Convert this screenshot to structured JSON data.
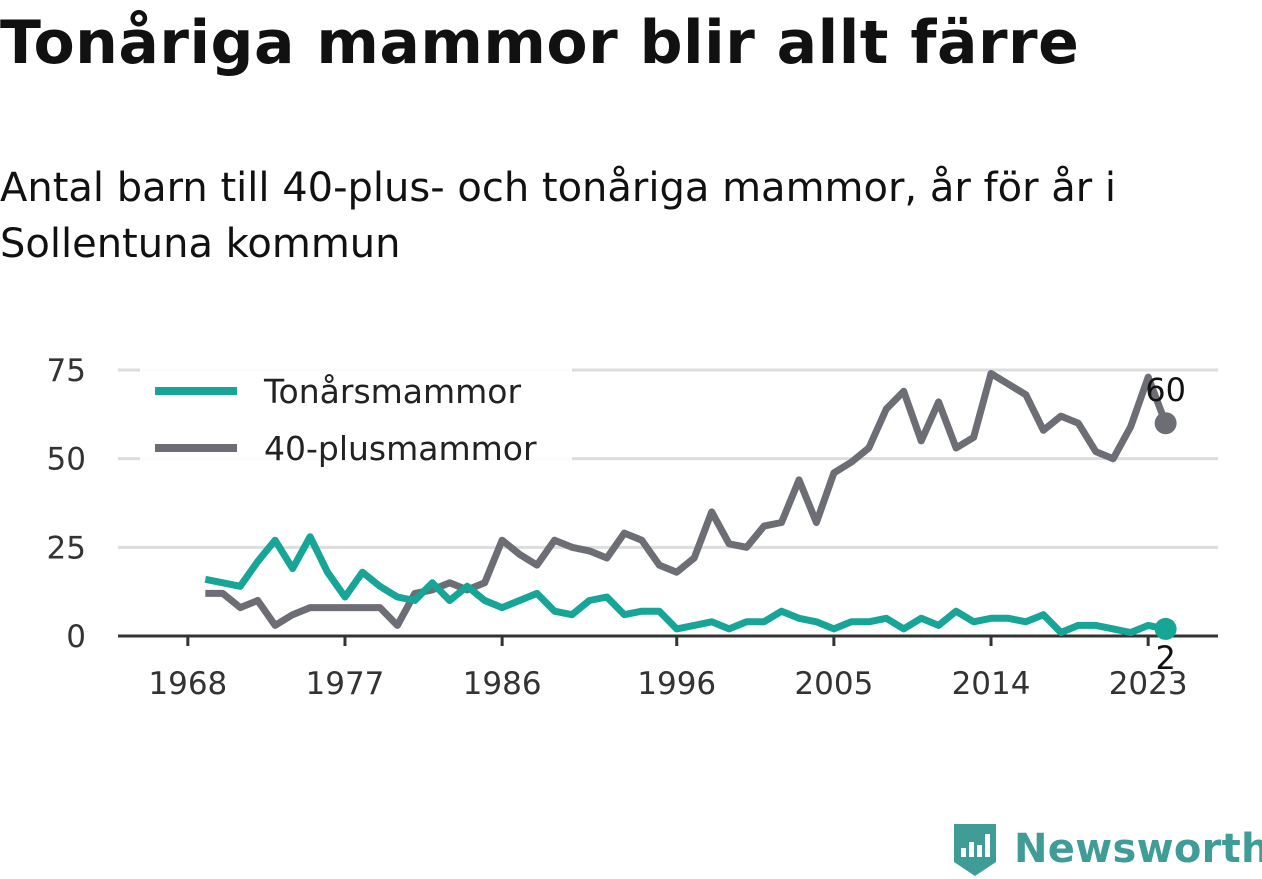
{
  "brand": {
    "name": "Newsworthy",
    "color": "#3f9c96",
    "icon": "bar-chart-badge-icon"
  },
  "chart_data": {
    "type": "line",
    "title": "Tonåriga mammor blir allt färre",
    "subtitle": "Antal barn till 40-plus- och tonåriga mammor, år för år i Sollentuna kommun",
    "xlabel": "",
    "ylabel": "",
    "xlim": [
      1964,
      2027
    ],
    "ylim": [
      0,
      75
    ],
    "yticks": [
      0,
      25,
      50,
      75
    ],
    "xticks": [
      1968,
      1977,
      1986,
      1996,
      2005,
      2014,
      2023
    ],
    "grid": true,
    "legend_position": "top-left",
    "x": [
      1969,
      1970,
      1971,
      1972,
      1973,
      1974,
      1975,
      1976,
      1977,
      1978,
      1979,
      1980,
      1981,
      1982,
      1983,
      1984,
      1985,
      1986,
      1987,
      1988,
      1989,
      1990,
      1991,
      1992,
      1993,
      1994,
      1995,
      1996,
      1997,
      1998,
      1999,
      2000,
      2001,
      2002,
      2003,
      2004,
      2005,
      2006,
      2007,
      2008,
      2009,
      2010,
      2011,
      2012,
      2013,
      2014,
      2015,
      2016,
      2017,
      2018,
      2019,
      2020,
      2021,
      2022,
      2023,
      2024
    ],
    "series": [
      {
        "name": "Tonårsmammor",
        "color": "#16a597",
        "values": [
          16,
          15,
          14,
          21,
          27,
          19,
          28,
          18,
          11,
          18,
          14,
          11,
          10,
          15,
          10,
          14,
          10,
          8,
          10,
          12,
          7,
          6,
          10,
          11,
          6,
          7,
          7,
          2,
          3,
          4,
          2,
          4,
          4,
          7,
          5,
          4,
          2,
          4,
          4,
          5,
          2,
          5,
          3,
          7,
          4,
          5,
          5,
          4,
          6,
          1,
          3,
          3,
          2,
          1,
          3,
          2
        ],
        "end_label": "2"
      },
      {
        "name": "40-plusmammor",
        "color": "#6d6e75",
        "values": [
          12,
          12,
          8,
          10,
          3,
          6,
          8,
          8,
          8,
          8,
          8,
          3,
          12,
          13,
          15,
          13,
          15,
          27,
          23,
          20,
          27,
          25,
          24,
          22,
          29,
          27,
          20,
          18,
          22,
          35,
          26,
          25,
          31,
          32,
          44,
          32,
          46,
          49,
          53,
          64,
          69,
          55,
          66,
          53,
          56,
          74,
          71,
          68,
          58,
          62,
          60,
          52,
          50,
          59,
          73,
          60
        ],
        "end_label": "60"
      }
    ]
  }
}
